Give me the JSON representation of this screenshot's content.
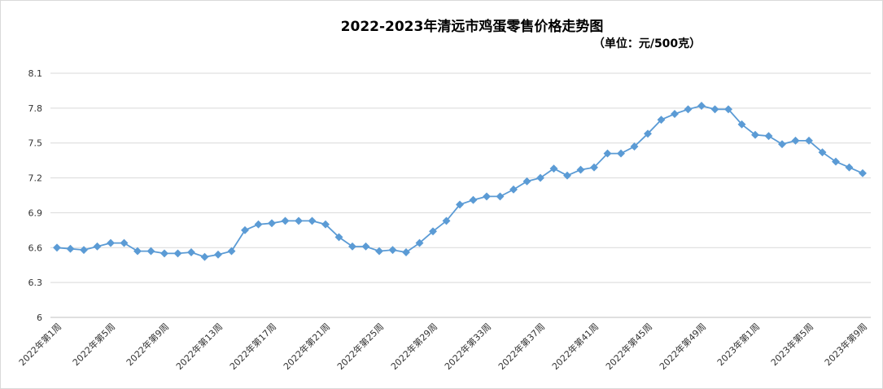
{
  "chart_data": {
    "type": "line",
    "title": "2022-2023年清远市鸡蛋零售价格走势图",
    "subtitle": "（单位：元/500克）",
    "categories": [
      "2022年第1周",
      null,
      null,
      null,
      "2022年第5周",
      null,
      null,
      null,
      "2022年第9周",
      null,
      null,
      null,
      "2022年第13周",
      null,
      null,
      null,
      "2022年第17周",
      null,
      null,
      null,
      "2022年第21周",
      null,
      null,
      null,
      "2022年第25周",
      null,
      null,
      null,
      "2022年第29周",
      null,
      null,
      null,
      "2022年第33周",
      null,
      null,
      null,
      "2022年第37周",
      null,
      null,
      null,
      "2022年第41周",
      null,
      null,
      null,
      "2022年第45周",
      null,
      null,
      null,
      "2022年第49周",
      null,
      null,
      null,
      "2023年第1周",
      null,
      null,
      null,
      "2023年第5周",
      null,
      null,
      null,
      "2023年第9周"
    ],
    "values": [
      6.6,
      6.59,
      6.58,
      6.61,
      6.64,
      6.64,
      6.57,
      6.57,
      6.55,
      6.55,
      6.56,
      6.52,
      6.54,
      6.57,
      6.75,
      6.8,
      6.81,
      6.83,
      6.83,
      6.83,
      6.8,
      6.69,
      6.61,
      6.61,
      6.57,
      6.58,
      6.56,
      6.64,
      6.74,
      6.83,
      6.97,
      7.01,
      7.04,
      7.04,
      7.1,
      7.17,
      7.2,
      7.28,
      7.22,
      7.27,
      7.29,
      7.41,
      7.41,
      7.47,
      7.58,
      7.7,
      7.75,
      7.79,
      7.82,
      7.79,
      7.79,
      7.66,
      7.57,
      7.56,
      7.49,
      7.52,
      7.52,
      7.42,
      7.34,
      7.29,
      7.24
    ],
    "color": "#5b9bd5",
    "ylim": [
      6,
      8.1
    ],
    "yticks": [
      6,
      6.3,
      6.6,
      6.9,
      7.2,
      7.5,
      7.8,
      8.1
    ],
    "grid": true
  }
}
